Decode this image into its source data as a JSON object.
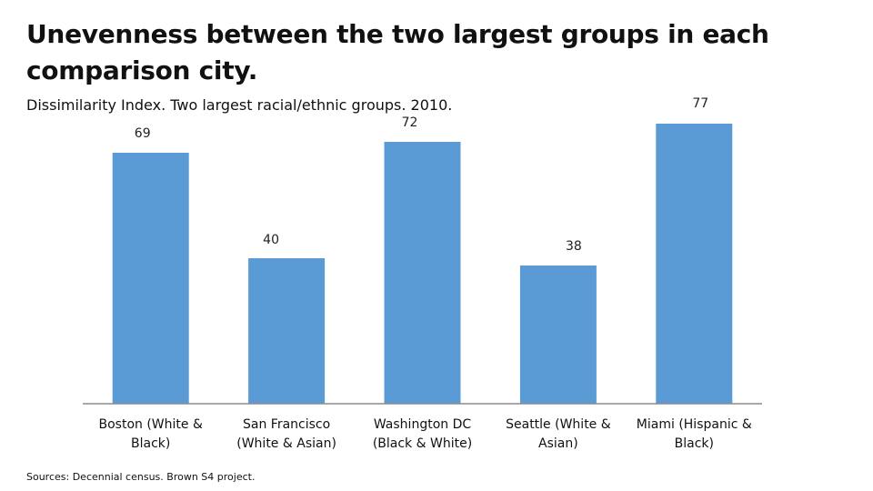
{
  "title": "Unevenness between the two largest groups in each comparison city.",
  "subtitle": "Dissimilarity Index. Two largest racial/ethnic groups. 2010.",
  "source": "Sources: Decennial census. Brown S4 project.",
  "colors": {
    "bar": "#5b9bd5",
    "axis": "#8c8c8c"
  },
  "chart_data": {
    "type": "bar",
    "categories": [
      "Boston (White & Black)",
      "San Francisco (White & Asian)",
      "Washington DC (Black & White)",
      "Seattle (White & Asian)",
      "Miami (Hispanic & Black)"
    ],
    "values": [
      69,
      40,
      72,
      38,
      77
    ],
    "data_labels": [
      "69",
      "40",
      "72",
      "38",
      "77"
    ],
    "ylim": [
      0,
      80
    ],
    "grid": false,
    "legend": "none"
  }
}
